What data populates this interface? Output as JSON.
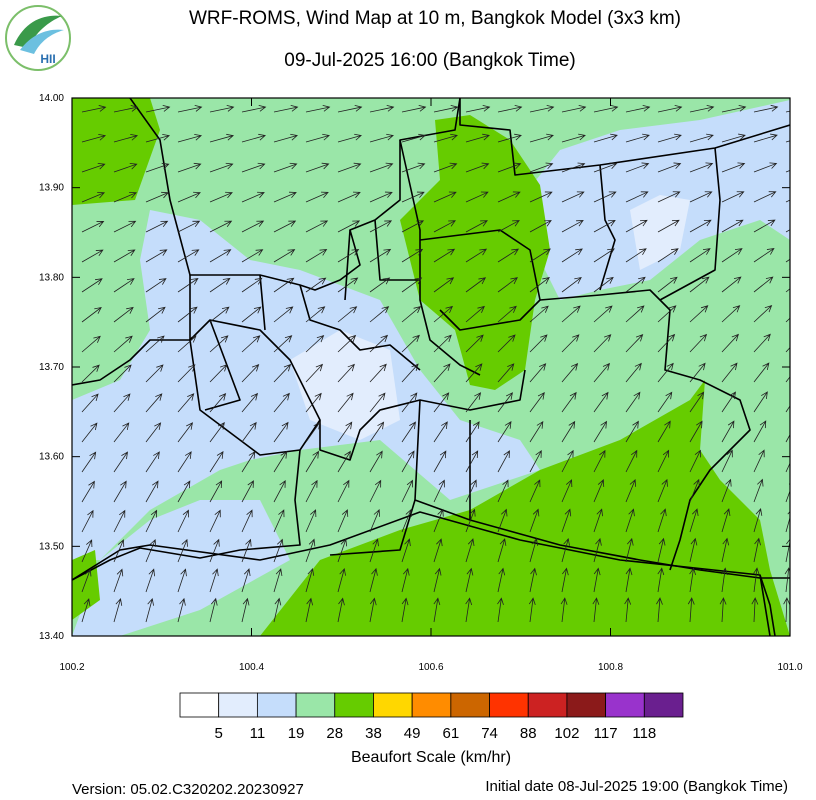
{
  "logo": {
    "text": "HII"
  },
  "header": {
    "title": "WRF-ROMS, Wind Map at 10 m, Bangkok Model (3x3 km)",
    "subtitle": "09-Jul-2025 16:00 (Bangkok Time)"
  },
  "axes": {
    "yticks": [
      "14.00",
      "13.90",
      "13.80",
      "13.70",
      "13.60",
      "13.50",
      "13.40"
    ],
    "xticks": [
      "100.2",
      "100.4",
      "100.6",
      "100.8",
      "101.0"
    ]
  },
  "colorbar": {
    "colors": [
      "#ffffff",
      "#e2edfd",
      "#c5ddfb",
      "#9ae6a8",
      "#66cc00",
      "#ffd700",
      "#ff8c00",
      "#cc6600",
      "#ff3300",
      "#cc2222",
      "#8b1a1a",
      "#9933cc",
      "#6a1f8f"
    ],
    "labels": [
      "5",
      "11",
      "19",
      "28",
      "38",
      "49",
      "61",
      "74",
      "88",
      "102",
      "117",
      "118"
    ],
    "title": "Beaufort Scale (km/hr)"
  },
  "footer": {
    "version": "Version: 05.02.C320202.20230927",
    "initial": "Initial date 08-Jul-2025 19:00 (Bangkok Time)"
  }
}
